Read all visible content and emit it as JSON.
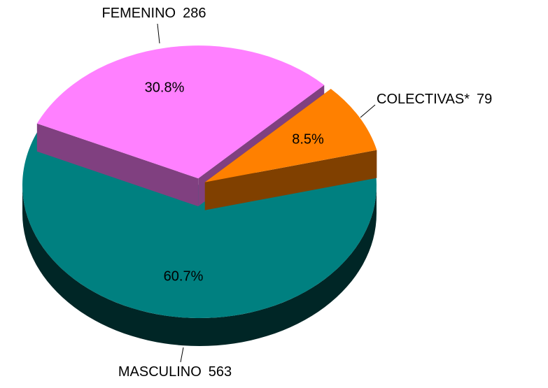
{
  "chart_data": {
    "type": "pie3d",
    "categories": [
      "MASCULINO",
      "FEMENINO",
      "COLECTIVAS*"
    ],
    "values": [
      563,
      286,
      79
    ],
    "percent_labels": [
      "60.7%",
      "30.8%",
      "8.5%"
    ],
    "colors": [
      "#008080",
      "#ff80ff",
      "#ff8000"
    ]
  }
}
